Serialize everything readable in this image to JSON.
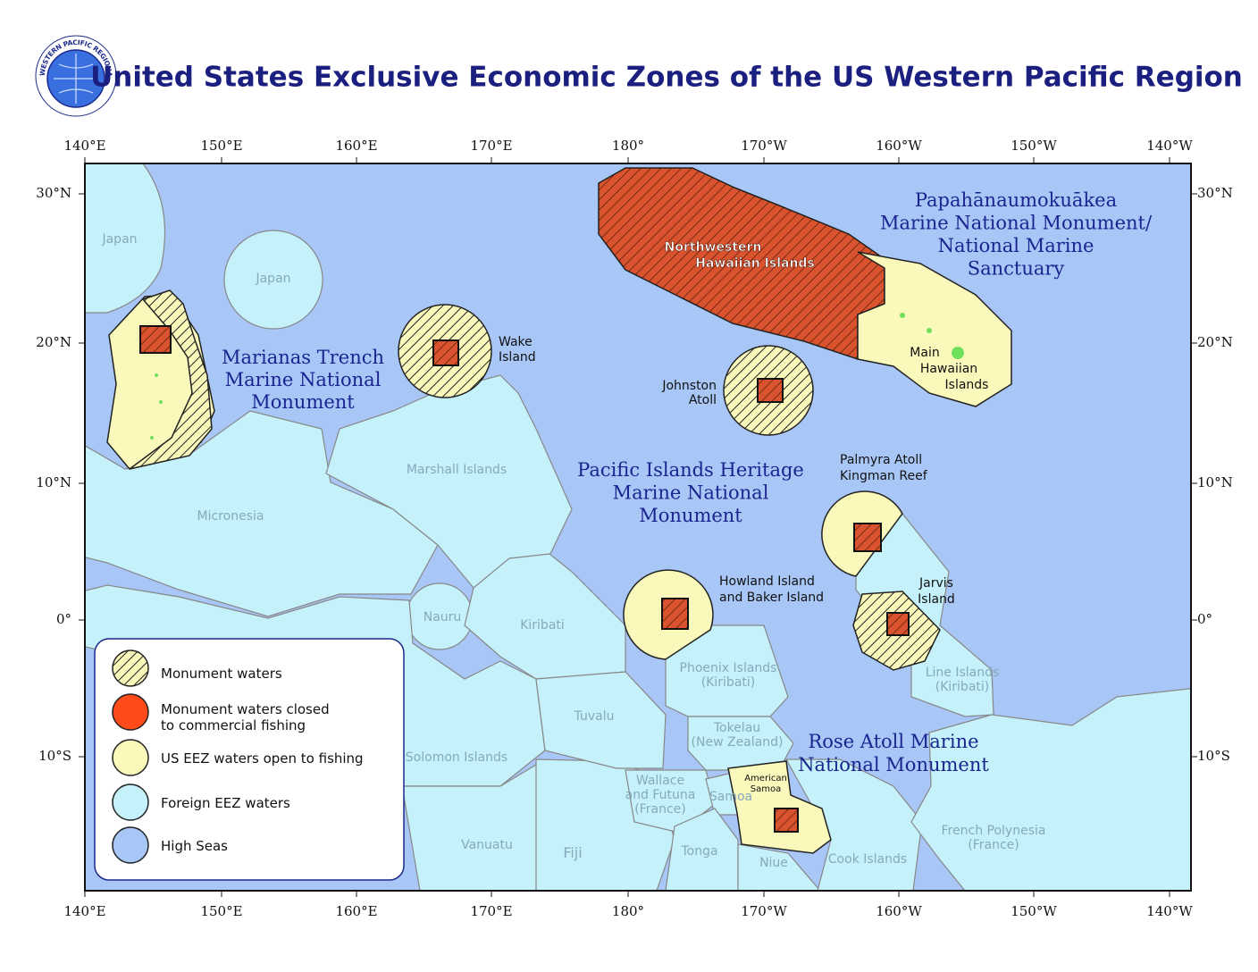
{
  "header": {
    "title": "United States Exclusive Economic Zones of the US Western Pacific Region",
    "logo_text": "WESTERN PACIFIC REGIONAL FISHERY MANAGEMENT COUNCIL"
  },
  "axes": {
    "longitudes": [
      "140°E",
      "150°E",
      "160°E",
      "170°E",
      "180°",
      "170°W",
      "160°W",
      "150°W",
      "140°W"
    ],
    "latitudes": [
      "30°N",
      "20°N",
      "10°N",
      "0°",
      "10°S"
    ]
  },
  "monuments": [
    {
      "name_lines": [
        "Papahānaumokuākea",
        "Marine National Monument/",
        "National Marine",
        "Sanctuary"
      ]
    },
    {
      "name_lines": [
        "Marianas Trench",
        "Marine National",
        "Monument"
      ]
    },
    {
      "name_lines": [
        "Pacific Islands Heritage",
        "Marine National",
        "Monument"
      ]
    },
    {
      "name_lines": [
        "Rose Atoll Marine",
        "National Monument"
      ]
    }
  ],
  "us_places": [
    {
      "name_lines": [
        "Northwestern",
        "Hawaiian Islands"
      ]
    },
    {
      "name_lines": [
        "Main",
        "Hawaiian",
        "Islands"
      ]
    },
    {
      "name_lines": [
        "Wake",
        "Island"
      ]
    },
    {
      "name_lines": [
        "Johnston",
        "Atoll"
      ]
    },
    {
      "name_lines": [
        "Palmyra Atoll",
        "Kingman Reef"
      ]
    },
    {
      "name_lines": [
        "Howland Island",
        "and Baker Island"
      ]
    },
    {
      "name_lines": [
        "Jarvis",
        "Island"
      ]
    },
    {
      "name_lines": [
        "American",
        "Samoa"
      ]
    }
  ],
  "foreign_places": [
    {
      "name_lines": [
        "Japan"
      ]
    },
    {
      "name_lines": [
        "Japan"
      ]
    },
    {
      "name_lines": [
        "Marshall Islands"
      ]
    },
    {
      "name_lines": [
        "Micronesia"
      ]
    },
    {
      "name_lines": [
        "Nauru"
      ]
    },
    {
      "name_lines": [
        "Kiribati"
      ]
    },
    {
      "name_lines": [
        "Phoenix Islands",
        "(Kiribati)"
      ]
    },
    {
      "name_lines": [
        "Line Islands",
        "(Kiribati)"
      ]
    },
    {
      "name_lines": [
        "Tuvalu"
      ]
    },
    {
      "name_lines": [
        "Tokelau",
        "(New Zealand)"
      ]
    },
    {
      "name_lines": [
        "Solomon Islands"
      ]
    },
    {
      "name_lines": [
        "Wallace",
        "and Futuna",
        "(France)"
      ]
    },
    {
      "name_lines": [
        "Samoa"
      ]
    },
    {
      "name_lines": [
        "Vanuatu"
      ]
    },
    {
      "name_lines": [
        "Fiji"
      ]
    },
    {
      "name_lines": [
        "Tonga"
      ]
    },
    {
      "name_lines": [
        "Niue"
      ]
    },
    {
      "name_lines": [
        "Cook Islands"
      ]
    },
    {
      "name_lines": [
        "French Polynesia",
        "(France)"
      ]
    }
  ],
  "legend": {
    "items": [
      {
        "label_lines": [
          "Monument waters"
        ]
      },
      {
        "label_lines": [
          "Monument waters closed",
          "to commercial fishing"
        ]
      },
      {
        "label_lines": [
          "US EEZ waters open to fishing"
        ]
      },
      {
        "label_lines": [
          "Foreign EEZ waters"
        ]
      },
      {
        "label_lines": [
          "High Seas"
        ]
      }
    ]
  }
}
